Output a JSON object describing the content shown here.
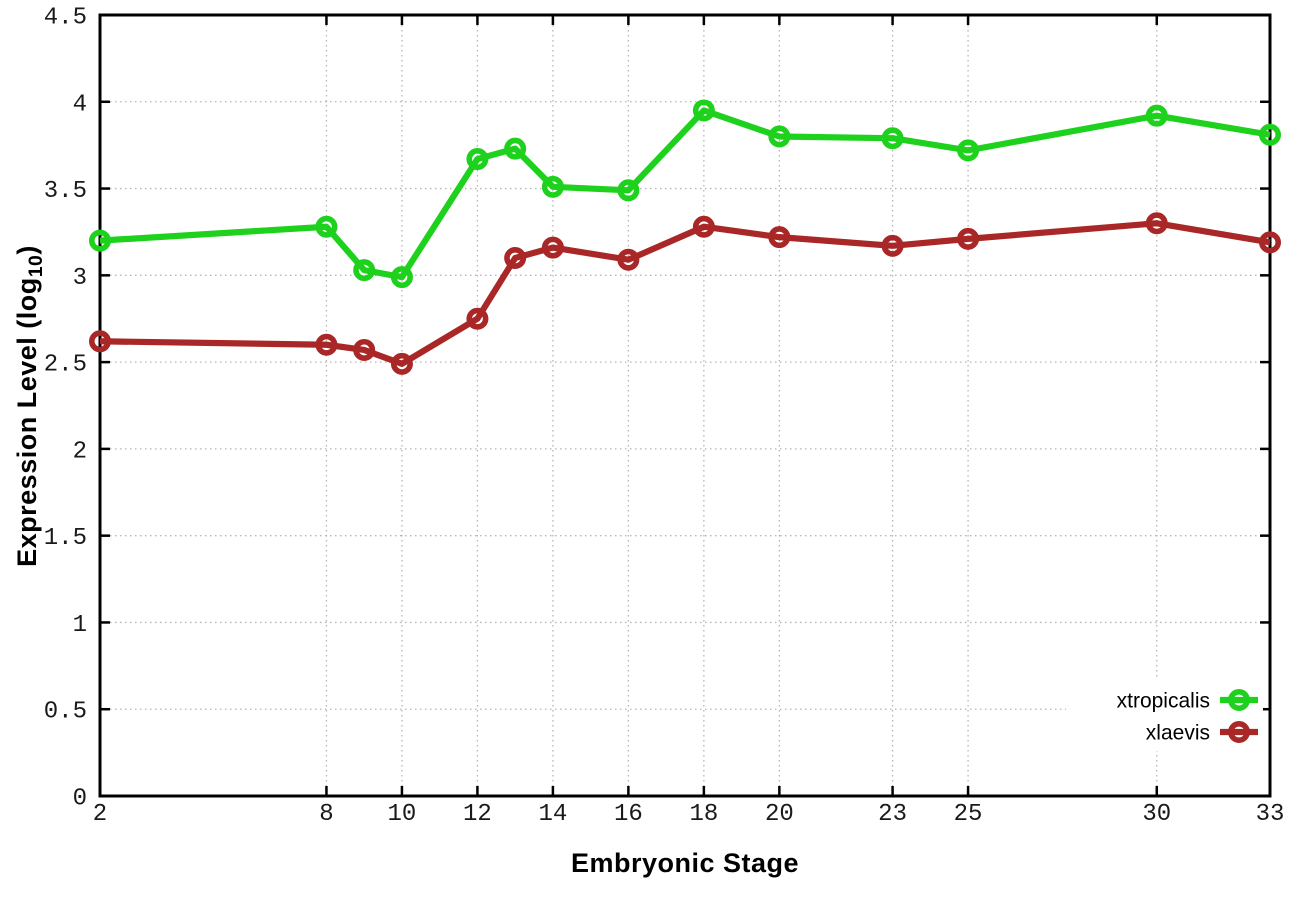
{
  "chart_data": {
    "type": "line",
    "title": "",
    "xlabel": "Embryonic Stage",
    "ylabel": "Expression Level (log10)",
    "ylabel_parts": {
      "prefix": "Expression Level (log",
      "sub": "10",
      "suffix": ")"
    },
    "x": [
      2,
      8,
      9,
      10,
      12,
      13,
      14,
      16,
      18,
      20,
      23,
      25,
      30,
      33
    ],
    "series": [
      {
        "name": "xtropicalis",
        "color": "#1dd11d",
        "values": [
          3.2,
          3.28,
          3.03,
          2.99,
          3.67,
          3.73,
          3.51,
          3.49,
          3.95,
          3.8,
          3.79,
          3.72,
          3.92,
          3.81
        ]
      },
      {
        "name": "xlaevis",
        "color": "#a92727",
        "values": [
          2.62,
          2.6,
          2.57,
          2.49,
          2.75,
          3.1,
          3.16,
          3.09,
          3.28,
          3.22,
          3.17,
          3.21,
          3.3,
          3.19
        ]
      }
    ],
    "x_ticks": [
      2,
      8,
      10,
      12,
      14,
      16,
      18,
      20,
      23,
      25,
      30,
      33
    ],
    "y_ticks": [
      0,
      0.5,
      1,
      1.5,
      2,
      2.5,
      3,
      3.5,
      4,
      4.5
    ],
    "xlim": [
      2,
      33
    ],
    "ylim": [
      0,
      4.5
    ],
    "grid": true,
    "marker": "open-circle",
    "legend_position": "inside-lower-right",
    "colors": {
      "grid": "#b5b5b5",
      "border": "#000000",
      "tick_text": "#1a1a1a"
    }
  }
}
